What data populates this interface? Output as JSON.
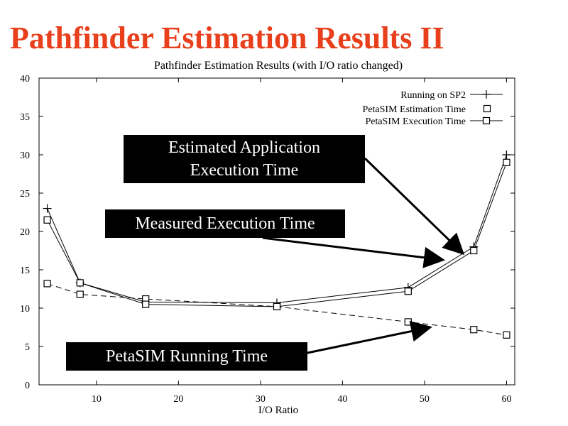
{
  "slide_title": "Pathfinder Estimation Results II",
  "colors": {
    "title": "#e8401c",
    "plot_line": "#000000",
    "box_bg": "#000000",
    "box_text": "#ffffff"
  },
  "annotations": {
    "estimated": "Estimated Application Execution Time",
    "measured": "Measured Execution Time",
    "running": "PetaSIM Running Time"
  },
  "chart_data": {
    "type": "line",
    "title": "Pathfinder Estimation Results (with I/O ratio changed)",
    "xlabel": "I/O Ratio",
    "ylabel": "",
    "xlim": [
      3,
      61
    ],
    "ylim": [
      0,
      40
    ],
    "x_ticks": [
      10,
      20,
      30,
      40,
      50,
      60
    ],
    "y_ticks": [
      0,
      5,
      10,
      15,
      20,
      25,
      30,
      35,
      40
    ],
    "grid": false,
    "legend_position": "top-right",
    "series": [
      {
        "name": "Running on SP2",
        "marker": "plus",
        "dash": "",
        "x": [
          4,
          8,
          16,
          32,
          48,
          56,
          60
        ],
        "y": [
          23,
          13.3,
          10.8,
          10.7,
          12.7,
          18,
          30
        ]
      },
      {
        "name": "PetaSIM Estimation Time",
        "marker": "square",
        "dash": "8,5",
        "x": [
          4,
          8,
          16,
          32,
          48,
          56,
          60
        ],
        "y": [
          13.2,
          11.8,
          11.2,
          10.2,
          8.2,
          7.2,
          6.5
        ]
      },
      {
        "name": "PetaSIM Execution Time",
        "marker": "square",
        "dash": "",
        "x": [
          4,
          8,
          16,
          32,
          48,
          56,
          60
        ],
        "y": [
          21.5,
          13.3,
          10.5,
          10.2,
          12.2,
          17.5,
          29
        ]
      }
    ]
  }
}
